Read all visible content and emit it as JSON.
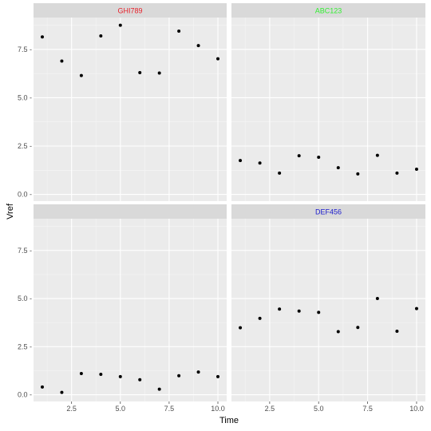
{
  "chart_data": {
    "type": "scatter",
    "xlabel": "Time",
    "ylabel": "Vref",
    "xlim": [
      0.55,
      10.45
    ],
    "ylim": [
      -0.35,
      9.15
    ],
    "x_ticks": [
      2.5,
      5.0,
      7.5,
      10.0
    ],
    "x_tick_labels": [
      "2.5",
      "5.0",
      "7.5",
      "10.0"
    ],
    "y_ticks": [
      0.0,
      2.5,
      5.0,
      7.5
    ],
    "y_tick_labels": [
      "0.0 -",
      "2.5 -",
      "5.0 -",
      "7.5 -"
    ],
    "grid": true,
    "point_color": "#000000",
    "panel_background": "#ebebeb",
    "strip_background": "#d9d9d9",
    "facets": [
      {
        "label": "GHI789",
        "label_color": "#e8202a",
        "x": [
          1,
          2,
          3,
          4,
          5,
          6,
          7,
          8,
          9,
          10
        ],
        "y": [
          8.15,
          6.9,
          6.15,
          8.2,
          8.75,
          6.3,
          6.28,
          8.45,
          7.7,
          7.02
        ]
      },
      {
        "label": "ABC123",
        "label_color": "#33ee33",
        "x": [
          1,
          2,
          3,
          4,
          5,
          6,
          7,
          8,
          9,
          10
        ],
        "y": [
          1.75,
          1.62,
          1.1,
          2.0,
          1.92,
          1.38,
          1.06,
          2.02,
          1.1,
          1.3
        ]
      },
      {
        "label": "",
        "label_color": "#f0e020",
        "x": [
          1,
          2,
          3,
          4,
          5,
          6,
          7,
          8,
          9,
          10
        ],
        "y": [
          0.4,
          0.12,
          1.1,
          1.06,
          0.94,
          0.78,
          0.29,
          0.99,
          1.18,
          0.94
        ]
      },
      {
        "label": "DEF456",
        "label_color": "#1a1acc",
        "x": [
          1,
          2,
          3,
          4,
          5,
          6,
          7,
          8,
          9,
          10
        ],
        "y": [
          3.48,
          3.97,
          4.45,
          4.35,
          4.28,
          3.28,
          3.5,
          5.0,
          3.3,
          4.48
        ]
      }
    ]
  }
}
